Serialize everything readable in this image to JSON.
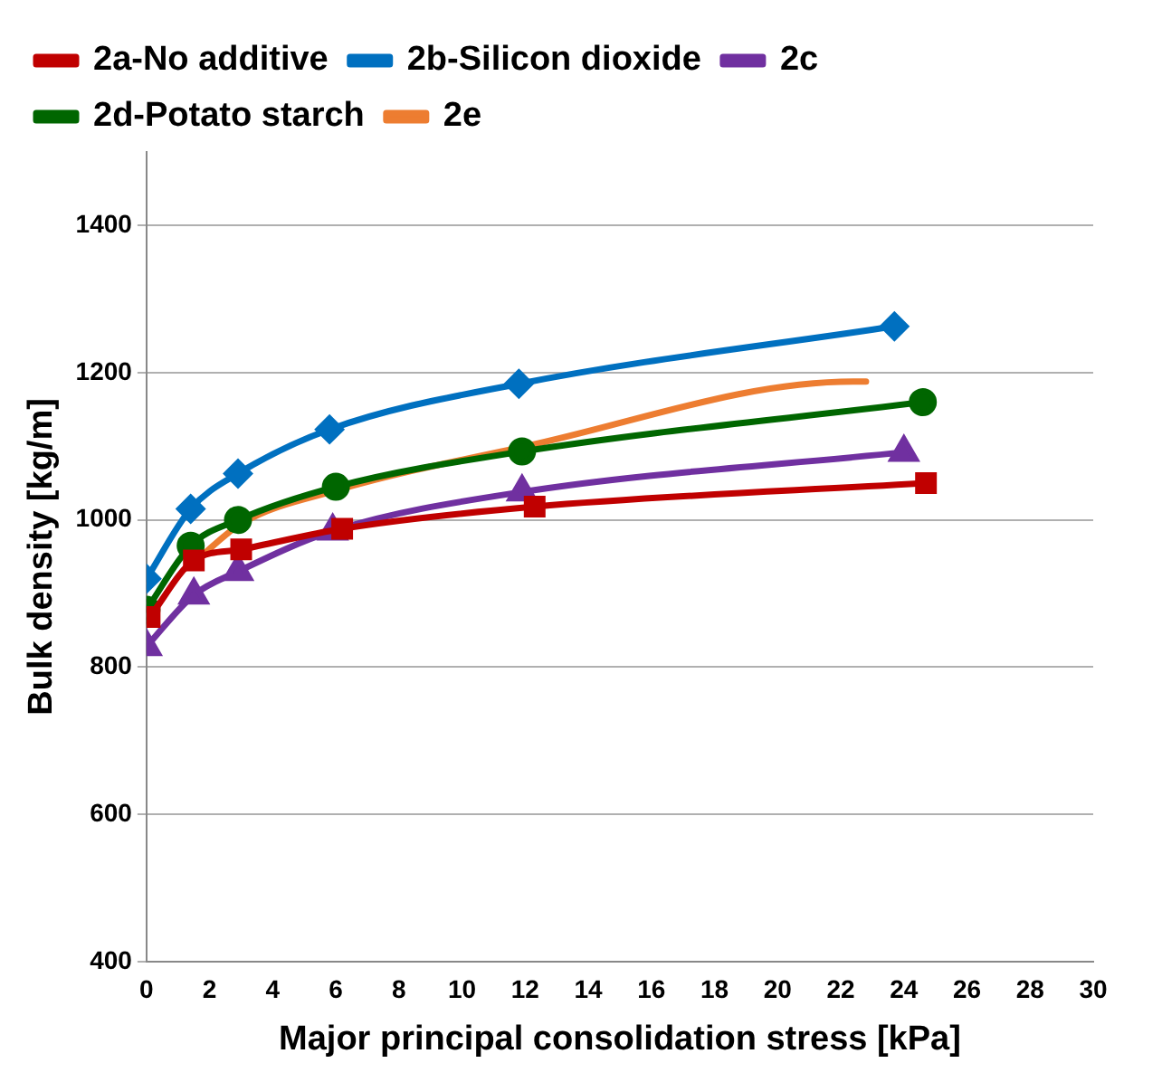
{
  "chart_data": {
    "type": "line",
    "xlabel": "Major principal consolidation stress [kPa]",
    "ylabel": "Bulk density [kg/m]",
    "xlim": [
      0,
      30
    ],
    "xticks": [
      0,
      2,
      4,
      6,
      8,
      10,
      12,
      14,
      16,
      18,
      20,
      22,
      24,
      26,
      28,
      30
    ],
    "ylim": [
      400,
      1500
    ],
    "yticks": [
      400,
      600,
      800,
      1000,
      1200,
      1400
    ],
    "grid": "y",
    "legend": "top",
    "series": [
      {
        "name": "2a-No additive",
        "color": "#c00000",
        "marker": "square",
        "x": [
          0.1,
          1.5,
          3,
          6.2,
          12.3,
          24.7
        ],
        "values": [
          868,
          945,
          960,
          988,
          1018,
          1050
        ]
      },
      {
        "name": "2b-Silicon dioxide",
        "color": "#0070c0",
        "marker": "diamond",
        "x": [
          0,
          1.4,
          2.9,
          5.8,
          11.8,
          23.7
        ],
        "values": [
          920,
          1015,
          1063,
          1123,
          1185,
          1263
        ]
      },
      {
        "name": "2c",
        "color": "#7030a0",
        "marker": "triangle",
        "x": [
          0,
          1.5,
          2.9,
          5.9,
          11.9,
          24
        ],
        "values": [
          828,
          898,
          930,
          985,
          1038,
          1092
        ]
      },
      {
        "name": "2d-Potato starch",
        "color": "#006600",
        "marker": "circle",
        "x": [
          0,
          1.4,
          2.9,
          6,
          11.9,
          24.6
        ],
        "values": [
          878,
          965,
          1000,
          1045,
          1093,
          1160
        ]
      },
      {
        "name": "2e",
        "color": "#ed7d31",
        "marker": "none",
        "x": [
          1.5,
          3,
          6,
          12,
          22.4,
          22.8
        ],
        "values": [
          942,
          995,
          1040,
          1100,
          1188,
          1188
        ]
      }
    ]
  }
}
